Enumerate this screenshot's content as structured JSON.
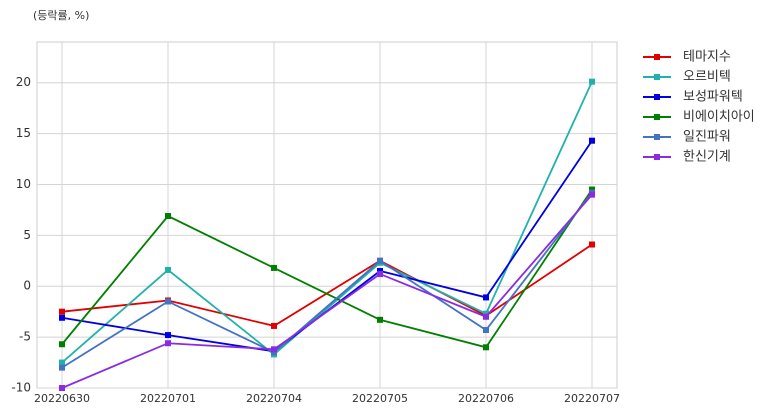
{
  "chart_data": {
    "type": "line",
    "y_label": "(등락률, %)",
    "categories": [
      "20220630",
      "20220701",
      "20220704",
      "20220705",
      "20220706",
      "20220707"
    ],
    "series": [
      {
        "name": "테마지수",
        "color": "#e00000",
        "values": [
          -2.5,
          -1.4,
          -3.9,
          2.5,
          -2.9,
          4.1
        ]
      },
      {
        "name": "오르비텍",
        "color": "#20b2aa",
        "values": [
          -7.5,
          1.6,
          -6.7,
          2.3,
          -2.7,
          20.1
        ]
      },
      {
        "name": "보성파워텍",
        "color": "#0000e0",
        "values": [
          -3.1,
          -4.8,
          -6.4,
          1.5,
          -1.1,
          14.3
        ]
      },
      {
        "name": "비에이치아이",
        "color": "#008000",
        "values": [
          -5.7,
          6.9,
          1.8,
          -3.3,
          -6.0,
          9.5
        ]
      },
      {
        "name": "일진파워",
        "color": "#4472c4",
        "values": [
          -8.0,
          -1.5,
          -6.5,
          2.5,
          -4.3,
          9.2
        ]
      },
      {
        "name": "한신기계",
        "color": "#8a2be2",
        "values": [
          -10.0,
          -5.6,
          -6.2,
          1.2,
          -3.0,
          9.0
        ]
      }
    ],
    "ylim": [
      -10,
      24
    ],
    "yticks": [
      -10,
      -5,
      0,
      5,
      10,
      15,
      20
    ],
    "grid": true,
    "legend": "right"
  }
}
